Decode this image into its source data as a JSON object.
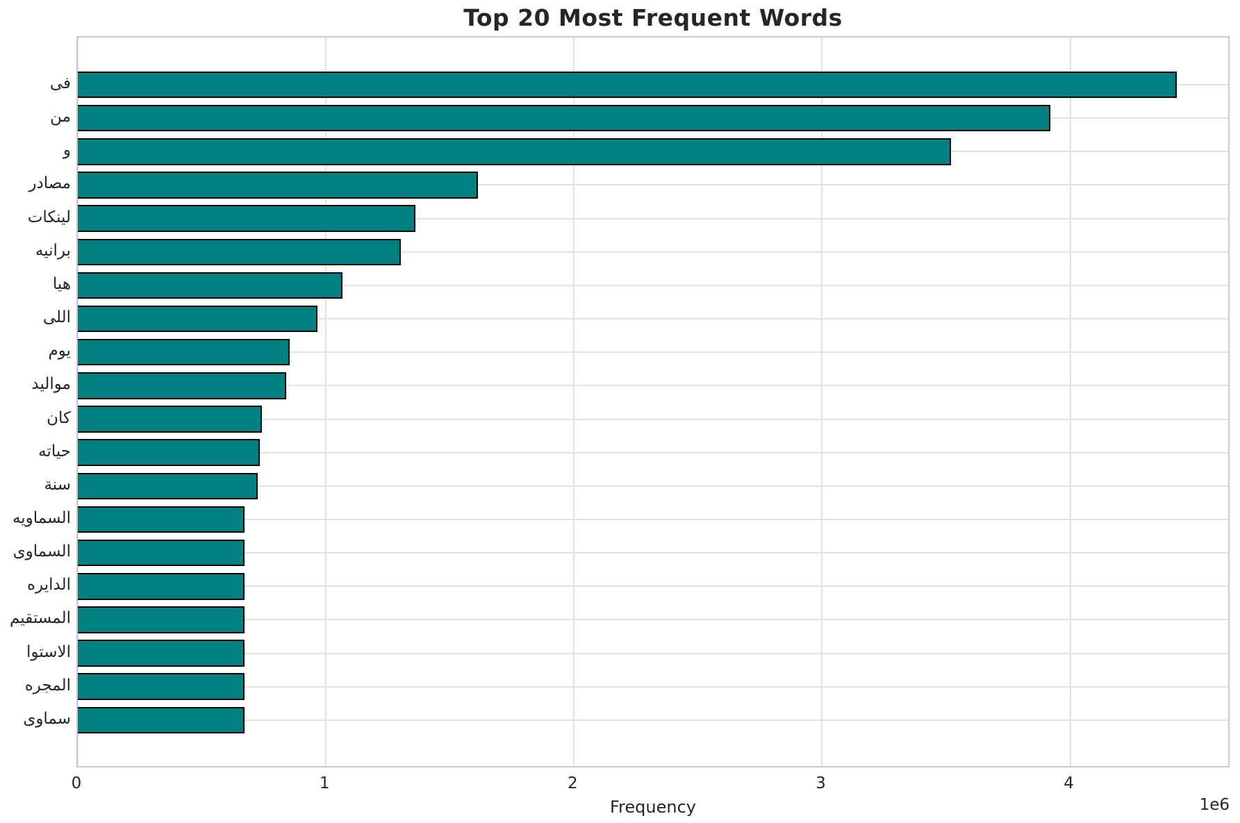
{
  "chart_data": {
    "type": "bar",
    "orientation": "horizontal",
    "title": "Top 20 Most Frequent Words",
    "xlabel": "Frequency",
    "offset_text": "1e6",
    "categories": [
      "فى",
      "من",
      "و",
      "مصادر",
      "لينكات",
      "برانيه",
      "هيا",
      "اللى",
      "يوم",
      "مواليد",
      "كان",
      "حياته",
      "سنة",
      "السماويه",
      "السماوى",
      "الدايره",
      "المستقيم",
      "الاستوا",
      "المجره",
      "سماوى"
    ],
    "values": [
      4430000,
      3920000,
      3520000,
      1614000,
      1362000,
      1301000,
      1066000,
      967000,
      855000,
      839000,
      741000,
      734000,
      725000,
      673000,
      672000,
      672000,
      671000,
      671000,
      671000,
      671000
    ],
    "xlim": [
      0,
      4648000
    ],
    "xticks": [
      0,
      1000000,
      2000000,
      3000000,
      4000000
    ],
    "xtick_labels": [
      "0",
      "1",
      "2",
      "3",
      "4"
    ],
    "grid": true,
    "legend": null,
    "colors": {
      "bar_fill": "#008080",
      "bar_edge": "#000000",
      "grid": "#e2e2e2",
      "spine": "#c9c9c9",
      "text": "#262626",
      "background": "#ffffff"
    }
  }
}
